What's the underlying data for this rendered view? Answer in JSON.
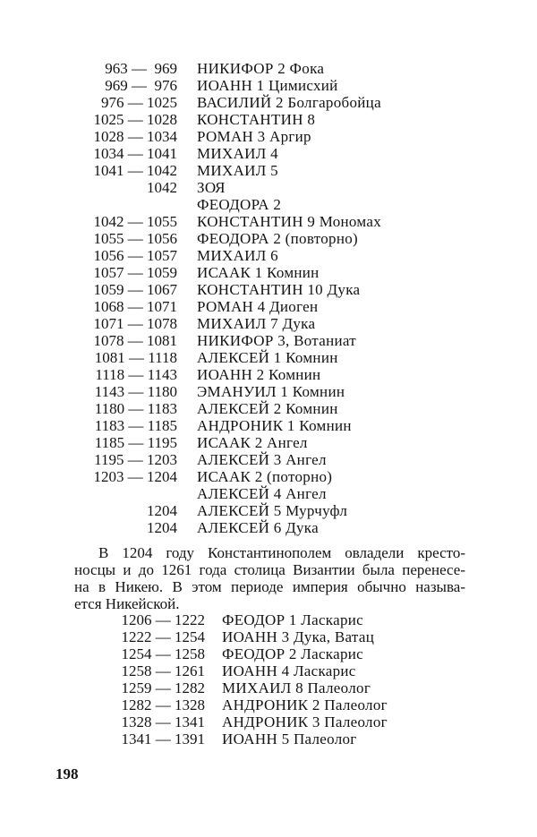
{
  "rulers_part1": [
    {
      "dates": "963 —  969",
      "name": "НИКИФОР 2 Фока"
    },
    {
      "dates": "969 —  976",
      "name": "ИОАНН 1 Цимисхий"
    },
    {
      "dates": "976 — 1025",
      "name": "ВАСИЛИЙ 2 Болгаробойца"
    },
    {
      "dates": "1025 — 1028",
      "name": "КОНСТАНТИН 8"
    },
    {
      "dates": "1028 — 1034",
      "name": "РОМАН 3 Аргир"
    },
    {
      "dates": "1034 — 1041",
      "name": "МИХАИЛ 4"
    },
    {
      "dates": "1041 — 1042",
      "name": "МИХАИЛ 5"
    },
    {
      "dates": "1042",
      "name": "ЗОЯ"
    },
    {
      "dates": "",
      "name": "ФЕОДОРА 2"
    },
    {
      "dates": "1042 — 1055",
      "name": "КОНСТАНТИН 9 Мономах"
    },
    {
      "dates": "1055 — 1056",
      "name": "ФЕОДОРА 2 (повторно)"
    },
    {
      "dates": "1056 — 1057",
      "name": "МИХАИЛ 6"
    },
    {
      "dates": "1057 — 1059",
      "name": "ИСААК 1 Комнин"
    },
    {
      "dates": "1059 — 1067",
      "name": "КОНСТАНТИН 10 Дука"
    },
    {
      "dates": "1068 — 1071",
      "name": "РОМАН 4 Диоген"
    },
    {
      "dates": "1071 — 1078",
      "name": "МИХАИЛ 7 Дука"
    },
    {
      "dates": "1078 — 1081",
      "name": "НИКИФОР 3, Вотаниат"
    },
    {
      "dates": "1081 — 1118",
      "name": "АЛЕКСЕЙ 1 Комнин"
    },
    {
      "dates": "1118 — 1143",
      "name": "ИОАНН 2 Комнин"
    },
    {
      "dates": "1143 — 1180",
      "name": "ЭМАНУИЛ 1 Комнин"
    },
    {
      "dates": "1180 — 1183",
      "name": "АЛЕКСЕЙ 2 Комнин"
    },
    {
      "dates": "1183 — 1185",
      "name": "АНДРОНИК 1 Комнин"
    },
    {
      "dates": "1185 — 1195",
      "name": "ИСААК 2 Ангел"
    },
    {
      "dates": "1195 — 1203",
      "name": "АЛЕКСЕЙ 3 Ангел"
    },
    {
      "dates": "1203 — 1204",
      "name": "ИСААК 2 (поторно)"
    },
    {
      "dates": "",
      "name": "АЛЕКСЕЙ 4 Ангел"
    },
    {
      "dates": "1204",
      "name": "АЛЕКСЕЙ 5 Мурчуфл"
    },
    {
      "dates": "1204",
      "name": "АЛЕКСЕЙ 6 Дука"
    }
  ],
  "paragraph_lines": [
    "В 1204 году Константинополем овладели кресто-",
    "носцы и до 1261 года столица Византии была перенесе-",
    "на в Никею. В этом периоде империя обычно называ-",
    "ется Никейской."
  ],
  "rulers_part2": [
    {
      "dates": "1206 — 1222",
      "name": "ФЕОДОР 1 Ласкарис"
    },
    {
      "dates": "1222 — 1254",
      "name": "ИОАНН 3 Дука, Ватац"
    },
    {
      "dates": "1254 — 1258",
      "name": "ФЕОДОР 2 Ласкарис"
    },
    {
      "dates": "1258 — 1261",
      "name": "ИОАНН 4 Ласкарис"
    },
    {
      "dates": "1259 — 1282",
      "name": "МИХАИЛ 8 Палеолог"
    },
    {
      "dates": "1282 — 1328",
      "name": "АНДРОНИК 2 Палеолог"
    },
    {
      "dates": "1328 — 1341",
      "name": "АНДРОНИК 3 Палеолог"
    },
    {
      "dates": "1341 — 1391",
      "name": "ИОАНН 5 Палеолог"
    }
  ],
  "page_number": "198"
}
